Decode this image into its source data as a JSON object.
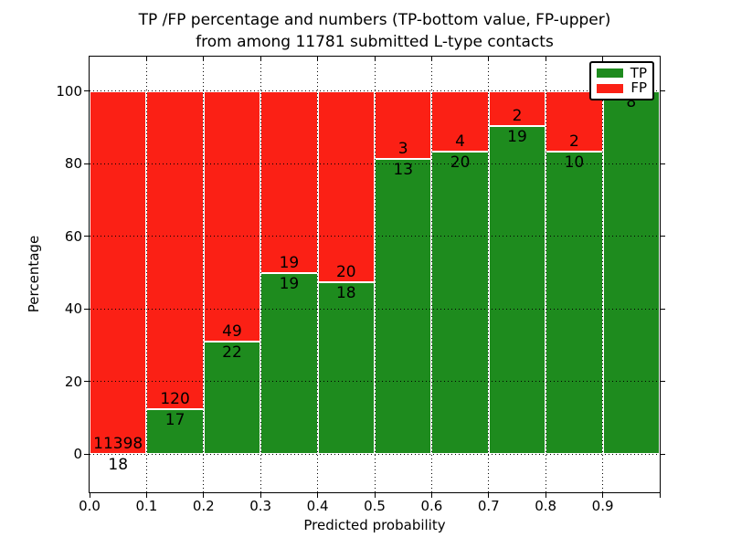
{
  "figure": {
    "title_line1": "TP /FP percentage and numbers (TP-bottom value, FP-upper)",
    "title_line2": "from among 11781 submitted L-type contacts"
  },
  "axes": {
    "x_label": "Predicted probability",
    "y_label": "Percentage",
    "x_tick_labels": [
      "0.0",
      "0.1",
      "0.2",
      "0.3",
      "0.4",
      "0.5",
      "0.6",
      "0.7",
      "0.8",
      "0.9"
    ],
    "y_tick_labels": [
      "0",
      "20",
      "40",
      "60",
      "80",
      "100"
    ]
  },
  "legend": {
    "items": [
      {
        "label": "TP",
        "color": "#1e8b1e"
      },
      {
        "label": "FP",
        "color": "#fb2015"
      }
    ]
  },
  "chart_data": {
    "type": "bar",
    "stacked": true,
    "normalized_to_percent": true,
    "title": "TP /FP percentage and numbers (TP-bottom value, FP-upper) from among 11781 submitted L-type contacts",
    "xlabel": "Predicted probability",
    "ylabel": "Percentage",
    "total_contacts": 11781,
    "bin_edges": [
      0.0,
      0.1,
      0.2,
      0.3,
      0.4,
      0.5,
      0.6,
      0.7,
      0.8,
      0.9,
      1.0
    ],
    "categories": [
      "0.0-0.1",
      "0.1-0.2",
      "0.2-0.3",
      "0.3-0.4",
      "0.4-0.5",
      "0.5-0.6",
      "0.6-0.7",
      "0.7-0.8",
      "0.8-0.9",
      "0.9-1.0"
    ],
    "series": [
      {
        "name": "TP",
        "color": "#1e8b1e",
        "counts": [
          18,
          17,
          22,
          19,
          18,
          13,
          20,
          19,
          10,
          8
        ]
      },
      {
        "name": "FP",
        "color": "#fb2015",
        "counts": [
          11398,
          120,
          49,
          19,
          20,
          3,
          4,
          2,
          2,
          0
        ]
      }
    ],
    "xlim": [
      0.0,
      1.0
    ],
    "ylim": [
      -10.5,
      109.5
    ],
    "y_ticks": [
      0,
      20,
      40,
      60,
      80,
      100
    ],
    "grid": "dotted",
    "legend_position": "upper right",
    "note": "each bin stacks TP (bottom, green) + FP (top, red) to 100%; count labels: TP below boundary, FP above boundary"
  }
}
